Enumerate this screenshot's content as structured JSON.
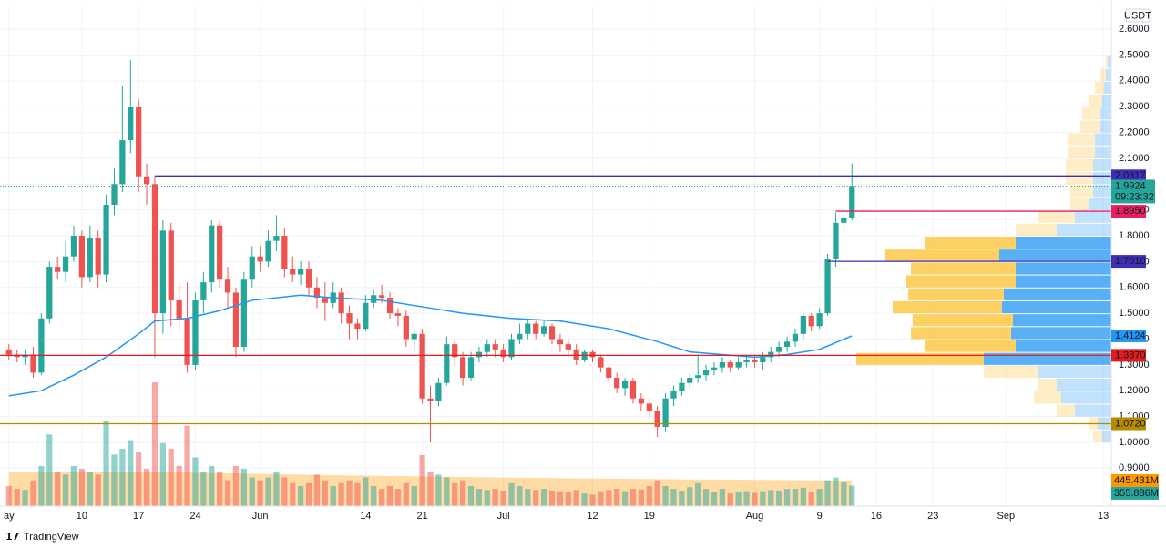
{
  "chart_data": {
    "type": "candlestick",
    "currency": "USDT",
    "brand": "TradingView",
    "xlim": [
      -1.1,
      136
    ],
    "xticks": [
      {
        "value": 0,
        "label": "ay"
      },
      {
        "value": 9,
        "label": "10"
      },
      {
        "value": 16,
        "label": "17"
      },
      {
        "value": 23,
        "label": "24"
      },
      {
        "value": 31,
        "label": "Jun"
      },
      {
        "value": 44,
        "label": "14"
      },
      {
        "value": 51,
        "label": "21"
      },
      {
        "value": 61,
        "label": "Jul"
      },
      {
        "value": 72,
        "label": "12"
      },
      {
        "value": 79,
        "label": "19"
      },
      {
        "value": 92,
        "label": "Aug"
      },
      {
        "value": 100,
        "label": "9"
      },
      {
        "value": 107,
        "label": "16"
      },
      {
        "value": 114,
        "label": "23"
      },
      {
        "value": 123,
        "label": "Sep"
      },
      {
        "value": 135,
        "label": "13"
      }
    ],
    "ylim": [
      0.753,
      2.685
    ],
    "yticks": [
      {
        "value": 0.9,
        "label": "0.9000"
      },
      {
        "value": 1.0,
        "label": "1.0000"
      },
      {
        "value": 1.1,
        "label": "1.1000"
      },
      {
        "value": 1.2,
        "label": "1.2000"
      },
      {
        "value": 1.3,
        "label": "1.3000"
      },
      {
        "value": 1.4,
        "label": "1.4000"
      },
      {
        "value": 1.5,
        "label": "1.5000"
      },
      {
        "value": 1.6,
        "label": "1.6000"
      },
      {
        "value": 1.7,
        "label": "1.7000"
      },
      {
        "value": 1.8,
        "label": "1.8000"
      },
      {
        "value": 1.9,
        "label": "1.9000"
      },
      {
        "value": 2.0,
        "label": "2.0000"
      },
      {
        "value": 2.1,
        "label": "2.1000"
      },
      {
        "value": 2.2,
        "label": "2.2000"
      },
      {
        "value": 2.3,
        "label": "2.3000"
      },
      {
        "value": 2.4,
        "label": "2.4000"
      },
      {
        "value": 2.5,
        "label": "2.5000"
      },
      {
        "value": 2.6,
        "label": "2.6000"
      }
    ],
    "grid": true,
    "up_color": "#26a69a",
    "down_color": "#ef5350",
    "open": [
      1.36,
      1.34,
      1.33,
      1.34,
      1.27,
      1.48,
      1.68,
      1.66,
      1.72,
      1.8,
      1.64,
      1.79,
      1.65,
      1.92,
      2.0,
      2.17,
      2.3,
      2.03,
      2.0,
      1.5,
      1.82,
      1.55,
      1.48,
      1.3,
      1.55,
      1.62,
      1.84,
      1.63,
      1.58,
      1.37,
      1.63,
      1.72,
      1.7,
      1.78,
      1.8,
      1.67,
      1.65,
      1.67,
      1.6,
      1.56,
      1.54,
      1.58,
      1.5,
      1.46,
      1.44,
      1.54,
      1.57,
      1.56,
      1.5,
      1.49,
      1.4,
      1.42,
      1.17,
      1.16,
      1.23,
      1.38,
      1.33,
      1.25,
      1.33,
      1.35,
      1.38,
      1.36,
      1.33,
      1.4,
      1.42,
      1.46,
      1.42,
      1.45,
      1.4,
      1.38,
      1.36,
      1.32,
      1.35,
      1.33,
      1.29,
      1.25,
      1.21,
      1.24,
      1.17,
      1.15,
      1.12,
      1.06,
      1.17,
      1.2,
      1.23,
      1.25,
      1.26,
      1.28,
      1.29,
      1.31,
      1.29,
      1.31,
      1.32,
      1.31,
      1.33,
      1.35,
      1.37,
      1.39,
      1.42,
      1.49,
      1.45,
      1.5,
      1.71,
      1.85,
      1.87
    ],
    "high": [
      1.38,
      1.36,
      1.36,
      1.37,
      1.5,
      1.7,
      1.72,
      1.78,
      1.84,
      1.82,
      1.84,
      1.82,
      1.96,
      2.06,
      2.38,
      2.48,
      2.33,
      2.08,
      2.03,
      1.86,
      1.85,
      1.62,
      1.62,
      1.58,
      1.66,
      1.86,
      1.86,
      1.68,
      1.6,
      1.66,
      1.76,
      1.76,
      1.82,
      1.88,
      1.83,
      1.72,
      1.7,
      1.7,
      1.64,
      1.62,
      1.62,
      1.6,
      1.53,
      1.48,
      1.57,
      1.59,
      1.61,
      1.58,
      1.52,
      1.51,
      1.44,
      1.44,
      1.22,
      1.25,
      1.41,
      1.4,
      1.35,
      1.35,
      1.37,
      1.4,
      1.4,
      1.38,
      1.42,
      1.46,
      1.48,
      1.47,
      1.47,
      1.46,
      1.42,
      1.4,
      1.38,
      1.36,
      1.36,
      1.34,
      1.3,
      1.27,
      1.25,
      1.25,
      1.19,
      1.17,
      1.14,
      1.19,
      1.22,
      1.25,
      1.27,
      1.34,
      1.3,
      1.31,
      1.33,
      1.32,
      1.33,
      1.34,
      1.34,
      1.35,
      1.37,
      1.39,
      1.41,
      1.44,
      1.5,
      1.5,
      1.52,
      1.73,
      1.89,
      1.9,
      2.08
    ],
    "low": [
      1.32,
      1.31,
      1.3,
      1.25,
      1.26,
      1.46,
      1.63,
      1.62,
      1.7,
      1.6,
      1.62,
      1.6,
      1.62,
      1.88,
      1.97,
      2.12,
      1.97,
      1.92,
      1.33,
      1.42,
      1.45,
      1.43,
      1.27,
      1.28,
      1.5,
      1.58,
      1.6,
      1.52,
      1.33,
      1.35,
      1.6,
      1.66,
      1.68,
      1.74,
      1.64,
      1.62,
      1.61,
      1.57,
      1.52,
      1.47,
      1.52,
      1.46,
      1.4,
      1.4,
      1.43,
      1.52,
      1.54,
      1.48,
      1.45,
      1.37,
      1.36,
      1.15,
      1.0,
      1.14,
      1.22,
      1.3,
      1.22,
      1.24,
      1.31,
      1.33,
      1.33,
      1.31,
      1.32,
      1.38,
      1.4,
      1.4,
      1.41,
      1.38,
      1.35,
      1.33,
      1.3,
      1.31,
      1.31,
      1.27,
      1.23,
      1.19,
      1.18,
      1.15,
      1.12,
      1.1,
      1.02,
      1.04,
      1.14,
      1.18,
      1.21,
      1.23,
      1.24,
      1.26,
      1.27,
      1.27,
      1.28,
      1.29,
      1.29,
      1.28,
      1.31,
      1.33,
      1.35,
      1.37,
      1.4,
      1.43,
      1.44,
      1.49,
      1.68,
      1.82,
      1.86
    ],
    "close": [
      1.34,
      1.33,
      1.34,
      1.27,
      1.48,
      1.68,
      1.66,
      1.72,
      1.8,
      1.64,
      1.79,
      1.65,
      1.92,
      2.0,
      2.17,
      2.3,
      2.03,
      2.0,
      1.5,
      1.82,
      1.55,
      1.48,
      1.3,
      1.55,
      1.62,
      1.84,
      1.63,
      1.58,
      1.37,
      1.63,
      1.72,
      1.7,
      1.78,
      1.8,
      1.67,
      1.65,
      1.67,
      1.6,
      1.56,
      1.54,
      1.58,
      1.5,
      1.46,
      1.44,
      1.54,
      1.57,
      1.56,
      1.5,
      1.49,
      1.4,
      1.42,
      1.17,
      1.16,
      1.23,
      1.38,
      1.33,
      1.25,
      1.33,
      1.35,
      1.38,
      1.36,
      1.33,
      1.4,
      1.42,
      1.46,
      1.42,
      1.45,
      1.4,
      1.38,
      1.36,
      1.32,
      1.35,
      1.33,
      1.29,
      1.25,
      1.21,
      1.24,
      1.17,
      1.15,
      1.12,
      1.06,
      1.17,
      1.2,
      1.23,
      1.25,
      1.26,
      1.28,
      1.29,
      1.31,
      1.29,
      1.31,
      1.32,
      1.31,
      1.33,
      1.35,
      1.37,
      1.39,
      1.42,
      1.49,
      1.45,
      1.5,
      1.71,
      1.85,
      1.87,
      1.9924
    ],
    "volume": [
      350,
      300,
      280,
      450,
      700,
      1250,
      600,
      550,
      700,
      650,
      600,
      550,
      1490,
      900,
      1000,
      1150,
      950,
      650,
      2160,
      1100,
      1000,
      700,
      1400,
      850,
      600,
      700,
      600,
      450,
      700,
      650,
      500,
      450,
      500,
      600,
      500,
      400,
      350,
      400,
      550,
      450,
      350,
      400,
      450,
      400,
      500,
      350,
      300,
      350,
      300,
      400,
      350,
      890,
      600,
      550,
      500,
      400,
      450,
      350,
      300,
      280,
      300,
      270,
      400,
      350,
      300,
      280,
      300,
      270,
      260,
      250,
      280,
      220,
      200,
      260,
      280,
      300,
      260,
      300,
      290,
      350,
      450,
      350,
      300,
      270,
      330,
      400,
      300,
      250,
      300,
      220,
      250,
      260,
      230,
      260,
      280,
      270,
      300,
      300,
      320,
      250,
      300,
      450,
      500,
      420,
      355.886
    ],
    "volume_ylim": [
      0,
      8700
    ],
    "volume_label": {
      "value": 355.886,
      "label": "355.886M"
    },
    "volume_ma": {
      "x": [
        0,
        20,
        40,
        60,
        80,
        104
      ],
      "values": [
        600,
        590,
        540,
        500,
        470,
        445.431
      ],
      "label": "445.431M",
      "color": "#ff9800"
    },
    "ma": {
      "x": [
        0,
        4,
        8,
        12,
        16,
        18,
        22,
        26,
        30,
        36,
        40,
        46,
        52,
        56,
        62,
        68,
        74,
        80,
        84,
        88,
        92,
        96,
        100,
        104
      ],
      "values": [
        1.18,
        1.2,
        1.26,
        1.33,
        1.42,
        1.47,
        1.48,
        1.51,
        1.55,
        1.57,
        1.56,
        1.55,
        1.52,
        1.5,
        1.48,
        1.47,
        1.44,
        1.39,
        1.35,
        1.34,
        1.33,
        1.34,
        1.36,
        1.4124
      ],
      "label": "1.4124",
      "color": "#2196f3"
    },
    "last_price": {
      "value": 1.9924,
      "label": "1.9924",
      "countdown": "09:23:32"
    },
    "levels": [
      {
        "value": 2.0317,
        "label": "2.0317",
        "color": "#3f2fb6",
        "from": 18
      },
      {
        "value": 1.895,
        "label": "1.8950",
        "color": "#e91e63",
        "from": 102
      },
      {
        "value": 1.701,
        "label": "1.7010",
        "color": "#3f2fb6",
        "from": 101
      },
      {
        "value": 1.337,
        "label": "1.3370",
        "color": "#e51c1c",
        "from": -1.1
      },
      {
        "value": 1.072,
        "label": "1.0720",
        "color": "#b58b00",
        "from": -1.1
      }
    ],
    "volume_profile": {
      "bins": [
        1.0,
        1.05,
        1.1,
        1.15,
        1.2,
        1.25,
        1.3,
        1.35,
        1.4,
        1.45,
        1.5,
        1.55,
        1.6,
        1.65,
        1.7,
        1.75,
        1.8,
        1.85,
        1.9,
        1.95,
        2.0,
        2.05,
        2.1,
        2.15,
        2.2,
        2.25,
        2.3,
        2.35,
        2.4,
        2.45,
        2.5
      ],
      "up": [
        10,
        15,
        40,
        55,
        60,
        80,
        140,
        105,
        110,
        108,
        120,
        118,
        105,
        105,
        123,
        105,
        60,
        40,
        25,
        20,
        20,
        20,
        18,
        18,
        12,
        12,
        10,
        8,
        6,
        4
      ],
      "down": [
        10,
        10,
        20,
        30,
        20,
        60,
        140,
        100,
        110,
        110,
        120,
        105,
        120,
        115,
        125,
        100,
        45,
        40,
        20,
        25,
        30,
        30,
        30,
        30,
        22,
        20,
        15,
        10,
        6,
        2
      ],
      "value_area": [
        1.3,
        1.8
      ]
    }
  }
}
